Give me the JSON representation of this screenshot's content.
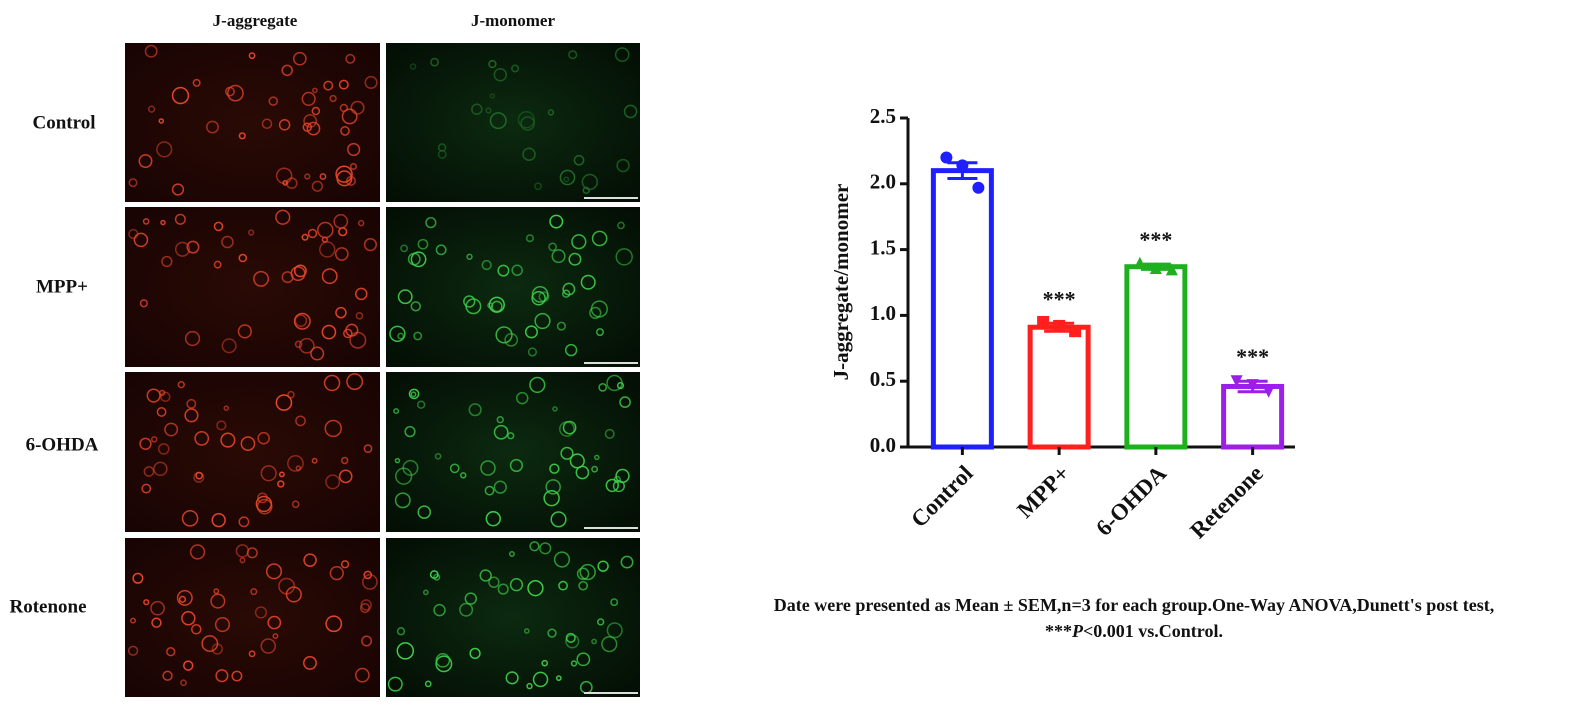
{
  "figure": {
    "column_headers": [
      "J-aggregate",
      "J-monomer"
    ],
    "row_labels": [
      "Control",
      "MPP+",
      "6-OHDA",
      "Rotenone"
    ],
    "caption": {
      "line1": "Date were presented as Mean ± SEM,n=3 for each group.One-Way ANOVA,Dunett's post test,",
      "line2_prefix": "***",
      "line2_italic": "P",
      "line2_suffix": "<0.001 vs.Control."
    }
  },
  "chart_data": {
    "type": "bar",
    "y_label": "J-aggregate/monomer",
    "categories": [
      "Control",
      "MPP+",
      "6-OHDA",
      "Retenone"
    ],
    "values": [
      2.1,
      0.91,
      1.37,
      0.46
    ],
    "errors": [
      0.06,
      0.03,
      0.02,
      0.04
    ],
    "points": [
      [
        2.2,
        2.14,
        1.97
      ],
      [
        0.95,
        0.92,
        0.88
      ],
      [
        1.4,
        1.36,
        1.35
      ],
      [
        0.5,
        0.47,
        0.42
      ]
    ],
    "markers": [
      "circle",
      "square",
      "triangle",
      "triangle-down"
    ],
    "colors": [
      "#1f1fff",
      "#ff1f1f",
      "#1fb01f",
      "#9b1fe6"
    ],
    "significance": [
      null,
      "***",
      "***",
      "***"
    ],
    "ylim": [
      0,
      2.5
    ],
    "yticks": [
      {
        "value": 0,
        "label": "0.0"
      },
      0.5,
      {
        "value": 1,
        "label": "1.0"
      },
      1.5,
      {
        "value": 2,
        "label": "2.0"
      },
      2.5
    ]
  }
}
